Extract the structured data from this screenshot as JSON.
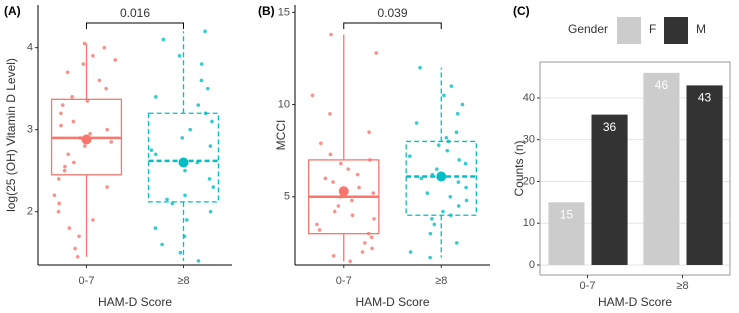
{
  "chart_data": [
    {
      "type": "box",
      "panel_label": "(A)",
      "y_label": "log(25 (OH) Vitamin D Level)",
      "x_label": "HAM-D Score",
      "categories": [
        "0-7",
        "≥8"
      ],
      "colors": [
        "#f8766d",
        "#00bfc4"
      ],
      "line_styles": [
        "solid",
        "dashed"
      ],
      "ylim": [
        1.35,
        4.52
      ],
      "yticks": [
        2,
        3,
        4
      ],
      "annotation": "0.016",
      "boxes": [
        {
          "min": 1.45,
          "q1": 2.45,
          "median": 2.9,
          "q3": 3.37,
          "max": 4.05,
          "mean": 2.88
        },
        {
          "min": 1.4,
          "q1": 2.12,
          "median": 2.62,
          "q3": 3.2,
          "max": 4.2,
          "mean": 2.6
        }
      ],
      "points": [
        [
          4.05,
          4.0,
          3.9,
          3.85,
          3.8,
          3.7,
          3.6,
          3.5,
          3.4,
          3.35,
          3.3,
          3.2,
          3.1,
          3.05,
          3.0,
          2.95,
          2.9,
          2.85,
          2.8,
          2.7,
          2.6,
          2.55,
          2.5,
          2.4,
          2.3,
          2.2,
          2.1,
          2.0,
          1.9,
          1.8,
          1.7,
          1.55,
          1.45
        ],
        [
          4.2,
          4.1,
          3.9,
          3.8,
          3.6,
          3.5,
          3.4,
          3.3,
          3.2,
          3.1,
          3.0,
          2.9,
          2.8,
          2.75,
          2.7,
          2.6,
          2.5,
          2.4,
          2.3,
          2.2,
          2.15,
          2.1,
          2.0,
          1.9,
          1.8,
          1.7,
          1.6,
          1.5,
          1.4
        ]
      ]
    },
    {
      "type": "box",
      "panel_label": "(B)",
      "y_label": "MCCI",
      "x_label": "HAM-D Score",
      "categories": [
        "0-7",
        "≥8"
      ],
      "colors": [
        "#f8766d",
        "#00bfc4"
      ],
      "line_styles": [
        "solid",
        "dashed"
      ],
      "ylim": [
        1.3,
        15.4
      ],
      "yticks": [
        5,
        10,
        15
      ],
      "annotation": "0.039",
      "boxes": [
        {
          "min": 1.5,
          "q1": 3.0,
          "median": 5.0,
          "q3": 7.0,
          "max": 13.8,
          "mean": 5.3
        },
        {
          "min": 1.7,
          "q1": 4.0,
          "median": 6.1,
          "q3": 8.0,
          "max": 12.0,
          "mean": 6.1
        }
      ],
      "points": [
        [
          13.8,
          12.8,
          10.5,
          9.5,
          8.5,
          7.9,
          7.3,
          7.0,
          6.8,
          6.5,
          6.2,
          6.0,
          5.8,
          5.5,
          5.2,
          5.0,
          4.8,
          4.5,
          4.2,
          4.0,
          3.8,
          3.5,
          3.2,
          3.0,
          2.8,
          2.5,
          2.2,
          2.0,
          1.8,
          1.5
        ],
        [
          12,
          11,
          10.5,
          10,
          9.5,
          9,
          8.5,
          8.2,
          8,
          7.8,
          7.5,
          7.2,
          7,
          6.8,
          6.5,
          6.2,
          6,
          5.8,
          5.5,
          5.2,
          5,
          4.8,
          4.5,
          4.2,
          4,
          3.8,
          3.5,
          3,
          2.5,
          2,
          1.7
        ]
      ]
    },
    {
      "type": "bar",
      "panel_label": "(C)",
      "y_label": "Counts (n)",
      "x_label": "HAM-D Score",
      "legend_title": "Gender",
      "categories": [
        "0-7",
        "≥8"
      ],
      "ylim": [
        -2.4,
        48.6
      ],
      "yticks": [
        0,
        10,
        20,
        30,
        40
      ],
      "grid": true,
      "series": [
        {
          "name": "F",
          "color": "#cccccc",
          "values": [
            15,
            46
          ]
        },
        {
          "name": "M",
          "color": "#333333",
          "values": [
            36,
            43
          ]
        }
      ]
    }
  ]
}
